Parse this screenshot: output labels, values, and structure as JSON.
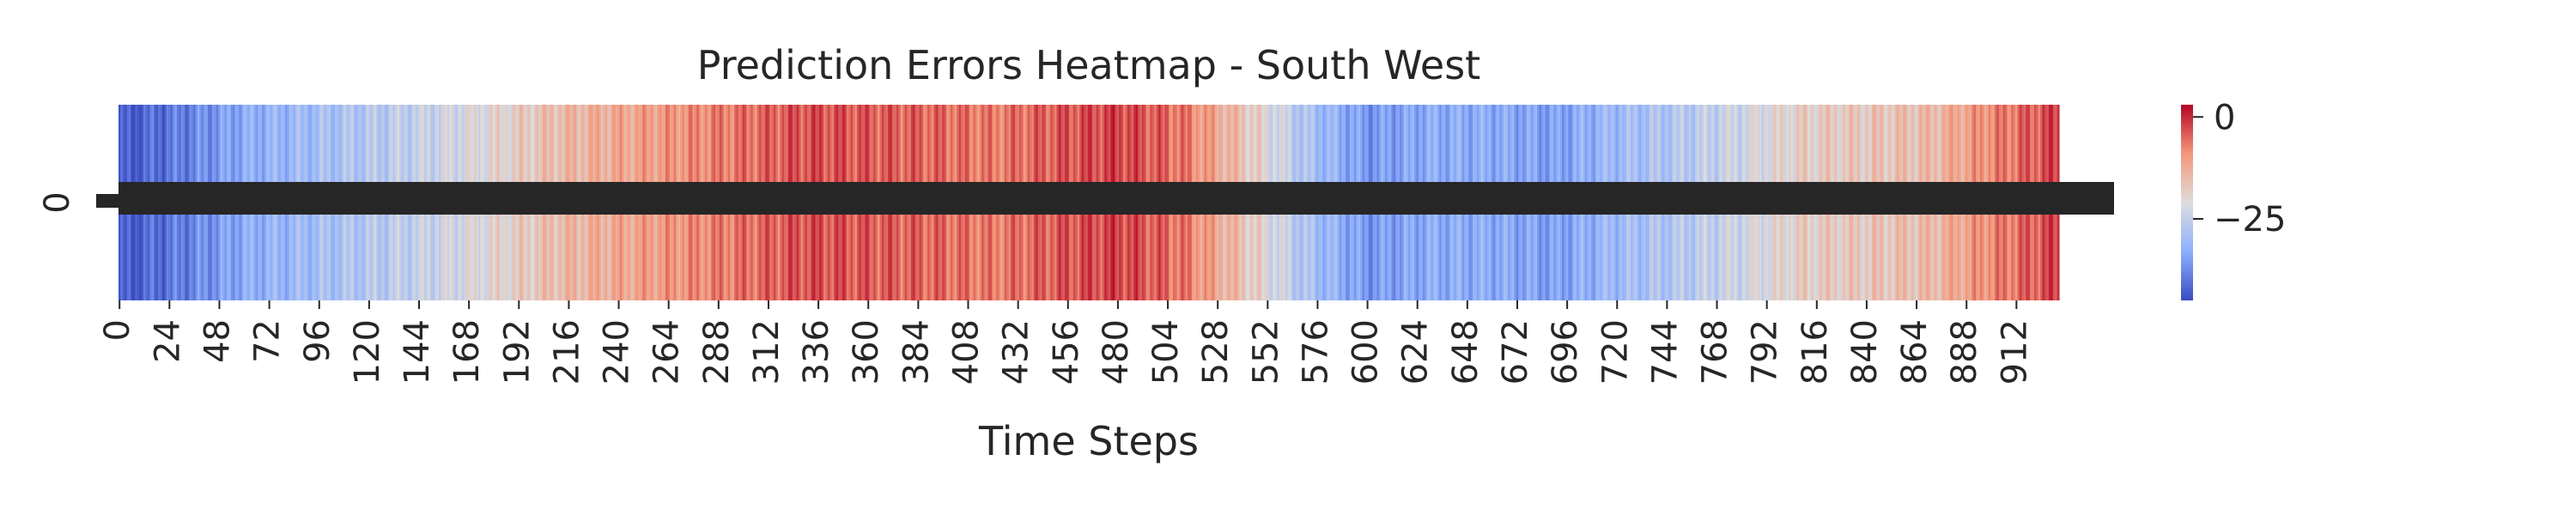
{
  "chart_data": {
    "type": "heatmap",
    "title": "Prediction Errors Heatmap - South West",
    "xlabel": "Time Steps",
    "ylabel": "",
    "y_categories": [
      "0"
    ],
    "x_tick_labels": [
      "0",
      "24",
      "48",
      "72",
      "96",
      "120",
      "144",
      "168",
      "192",
      "216",
      "240",
      "264",
      "288",
      "312",
      "336",
      "360",
      "384",
      "408",
      "432",
      "456",
      "480",
      "504",
      "528",
      "552",
      "576",
      "600",
      "624",
      "648",
      "672",
      "696",
      "720",
      "744",
      "768",
      "792",
      "816",
      "840",
      "864",
      "888",
      "912"
    ],
    "x_tick_step": 24,
    "n_cells": 933,
    "anchor_steps": [
      0,
      30,
      60,
      90,
      120,
      150,
      180,
      210,
      240,
      270,
      300,
      330,
      360,
      390,
      420,
      450,
      480,
      510,
      540,
      570,
      600,
      630,
      660,
      690,
      720,
      750,
      780,
      810,
      840,
      870,
      900,
      932
    ],
    "anchor_errors": [
      -44,
      -39,
      -33,
      -30,
      -27,
      -24,
      -20,
      -15,
      -12,
      -9,
      -6,
      -3,
      -4,
      -5,
      -7,
      -4,
      -2,
      -6,
      -16,
      -28,
      -36,
      -33,
      -33,
      -35,
      -30,
      -27,
      -23,
      -18,
      -17,
      -15,
      -8,
      -2
    ],
    "colorbar": {
      "min": -45,
      "max": 3,
      "ticks": [
        0,
        -25
      ],
      "tick_labels": [
        "0",
        "−25"
      ],
      "colormap": "coolwarm"
    },
    "annotations": "cell values printed in each cell, overlapping into a dark band",
    "colors": {
      "low": "#3b4cc0",
      "mid": "#dddddd",
      "high": "#b40426",
      "annotation": "#262626"
    }
  }
}
